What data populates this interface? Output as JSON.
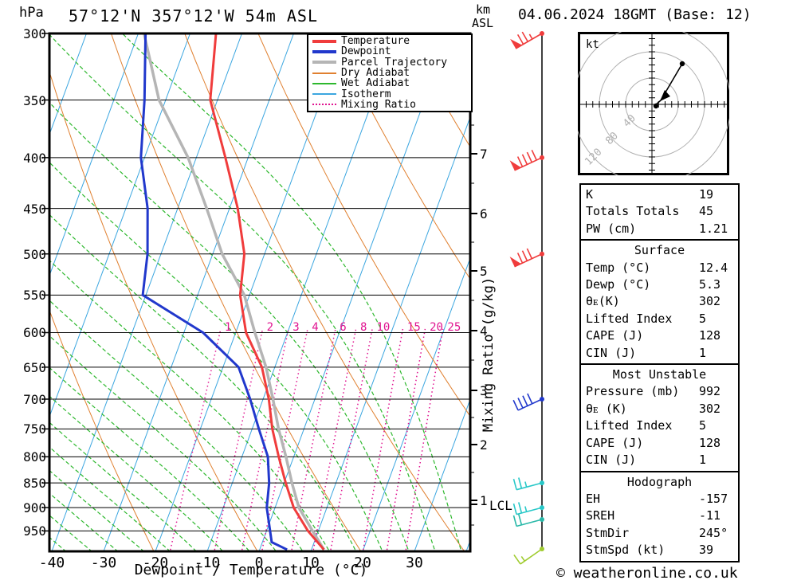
{
  "header": {
    "title": "57°12'N 357°12'W 54m ASL",
    "date": "04.06.2024 18GMT (Base: 12)",
    "pressure_unit": "hPa",
    "height_unit_line1": "km",
    "height_unit_line2": "ASL"
  },
  "footer": {
    "copyright": "© weatheronline.co.uk"
  },
  "legend": {
    "items": [
      {
        "label": "Temperature",
        "color": "#f03c3c",
        "style": "thick"
      },
      {
        "label": "Dewpoint",
        "color": "#2138cc",
        "style": "thick"
      },
      {
        "label": "Parcel Trajectory",
        "color": "#b5b5b5",
        "style": "thick"
      },
      {
        "label": "Dry Adiabat",
        "color": "#e08030",
        "style": "thin"
      },
      {
        "label": "Wet Adiabat",
        "color": "#2eb82e",
        "style": "thin"
      },
      {
        "label": "Isotherm",
        "color": "#3ba6e0",
        "style": "thin"
      },
      {
        "label": "Mixing Ratio",
        "color": "#e01490",
        "style": "dotted"
      }
    ]
  },
  "plot": {
    "x_axis_label": "Dewpoint / Temperature (°C)",
    "mixing_ratio_axis_label": "Mixing Ratio (g/kg)",
    "lcl_label": "LCL"
  },
  "hodograph": {
    "unit": "kt",
    "ring_labels": [
      "40",
      "80",
      "120"
    ]
  },
  "tables": {
    "stats": {
      "rows": [
        {
          "label": "K",
          "value": "19"
        },
        {
          "label": "Totals Totals",
          "value": "45"
        },
        {
          "label": "PW (cm)",
          "value": "1.21"
        }
      ]
    },
    "surface": {
      "title": "Surface",
      "rows": [
        {
          "label": "Temp (°C)",
          "value": "12.4"
        },
        {
          "label": "Dewp (°C)",
          "value": "5.3"
        },
        {
          "label": "θᴇ(K)",
          "value": "302"
        },
        {
          "label": "Lifted Index",
          "value": "5"
        },
        {
          "label": "CAPE (J)",
          "value": "128"
        },
        {
          "label": "CIN (J)",
          "value": "1"
        }
      ]
    },
    "most_unstable": {
      "title": "Most Unstable",
      "rows": [
        {
          "label": "Pressure (mb)",
          "value": "992"
        },
        {
          "label": "θᴇ (K)",
          "value": "302"
        },
        {
          "label": "Lifted Index",
          "value": "5"
        },
        {
          "label": "CAPE (J)",
          "value": "128"
        },
        {
          "label": "CIN (J)",
          "value": "1"
        }
      ]
    },
    "hodograph_stats": {
      "title": "Hodograph",
      "rows": [
        {
          "label": "EH",
          "value": "-157"
        },
        {
          "label": "SREH",
          "value": "-11"
        },
        {
          "label": "StmDir",
          "value": "245°"
        },
        {
          "label": "StmSpd (kt)",
          "value": "39"
        }
      ]
    }
  },
  "chart_data": {
    "type": "line",
    "subtype": "skewT-logP-sounding",
    "title": "57°12'N 357°12'W 54m ASL",
    "xlabel": "Dewpoint / Temperature (°C)",
    "ylabel": "hPa",
    "x_ticks": [
      -40,
      -30,
      -20,
      -10,
      0,
      10,
      20,
      30
    ],
    "x_range": [
      -40,
      40
    ],
    "pressure_ticks": [
      300,
      350,
      400,
      450,
      500,
      550,
      600,
      650,
      700,
      750,
      800,
      850,
      900,
      950
    ],
    "pressure_range": [
      300,
      1000
    ],
    "height_ticks_km": [
      1,
      2,
      3,
      4,
      5,
      6,
      7
    ],
    "isotherms": {
      "min": -120,
      "max": 40,
      "step": 10
    },
    "dry_adiabats": {
      "min": -40,
      "max": 160,
      "step": 20
    },
    "wet_adiabats": {
      "min": -60,
      "max": 40,
      "step": 5
    },
    "mixing_ratio_lines": [
      1,
      2,
      3,
      4,
      6,
      8,
      10,
      15,
      20,
      25
    ],
    "series": [
      {
        "name": "Temperature",
        "color": "#f03c3c",
        "width": 3,
        "points": [
          [
            992,
            12.4
          ],
          [
            950,
            8
          ],
          [
            900,
            3.6
          ],
          [
            850,
            0.3
          ],
          [
            800,
            -2.9
          ],
          [
            750,
            -6.1
          ],
          [
            700,
            -8.9
          ],
          [
            650,
            -12.5
          ],
          [
            600,
            -18
          ],
          [
            550,
            -21.8
          ],
          [
            500,
            -23.9
          ],
          [
            450,
            -28.4
          ],
          [
            400,
            -34.4
          ],
          [
            350,
            -41.4
          ],
          [
            300,
            -45
          ]
        ]
      },
      {
        "name": "Dewpoint",
        "color": "#2138cc",
        "width": 3,
        "points": [
          [
            992,
            5.3
          ],
          [
            975,
            1.8
          ],
          [
            950,
            0.7
          ],
          [
            900,
            -1.6
          ],
          [
            850,
            -2.9
          ],
          [
            800,
            -5
          ],
          [
            750,
            -8.7
          ],
          [
            700,
            -12.5
          ],
          [
            650,
            -17
          ],
          [
            600,
            -26.3
          ],
          [
            550,
            -40.6
          ],
          [
            500,
            -42.6
          ],
          [
            450,
            -45.8
          ],
          [
            400,
            -50.7
          ],
          [
            350,
            -54.1
          ],
          [
            300,
            -58.6
          ]
        ]
      },
      {
        "name": "Parcel Trajectory",
        "color": "#b5b5b5",
        "width": 3.5,
        "points": [
          [
            992,
            12.4
          ],
          [
            950,
            8.9
          ],
          [
            900,
            4.6
          ],
          [
            850,
            1.5
          ],
          [
            800,
            -1.5
          ],
          [
            750,
            -4.9
          ],
          [
            700,
            -8.1
          ],
          [
            650,
            -11.7
          ],
          [
            600,
            -16.3
          ],
          [
            550,
            -21
          ],
          [
            500,
            -28.2
          ],
          [
            450,
            -34.4
          ],
          [
            400,
            -41.6
          ],
          [
            350,
            -51.3
          ],
          [
            300,
            -58.9
          ]
        ]
      }
    ],
    "winds": [
      {
        "p": 300,
        "speed_kt": 75,
        "dir_deg": 240,
        "color": "#f03c3c"
      },
      {
        "p": 400,
        "speed_kt": 90,
        "dir_deg": 245,
        "color": "#f03c3c"
      },
      {
        "p": 500,
        "speed_kt": 80,
        "dir_deg": 245,
        "color": "#f03c3c"
      },
      {
        "p": 700,
        "speed_kt": 40,
        "dir_deg": 245,
        "color": "#2138cc"
      },
      {
        "p": 850,
        "speed_kt": 25,
        "dir_deg": 255,
        "color": "#28c8c8"
      },
      {
        "p": 900,
        "speed_kt": 25,
        "dir_deg": 255,
        "color": "#28c8c8"
      },
      {
        "p": 925,
        "speed_kt": 20,
        "dir_deg": 255,
        "color": "#28b8a8"
      },
      {
        "p": 992,
        "speed_kt": 15,
        "dir_deg": 235,
        "color": "#a0cc30"
      }
    ],
    "hodograph": {
      "unit": "kt",
      "rings_kt": [
        40,
        80,
        120
      ]
    }
  }
}
